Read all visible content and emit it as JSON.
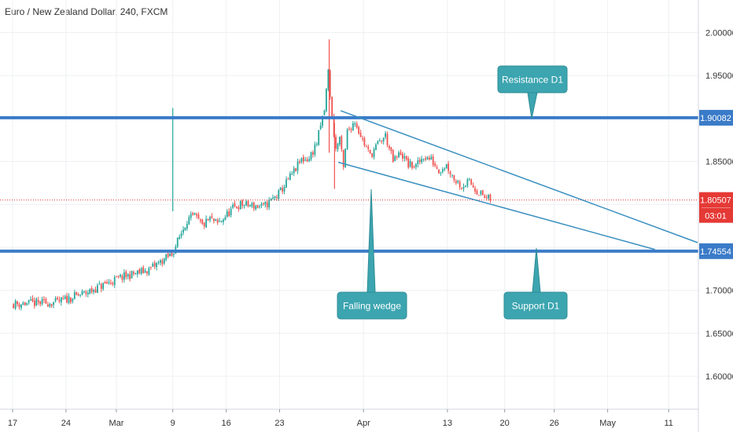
{
  "title": "Euro / New Zealand Dollar, 240, FXCM",
  "colors": {
    "up": "#26a69a",
    "down": "#ef5350",
    "level": "#3a7bc8",
    "wedge": "#3a8fc0",
    "callout_fill": "#3ca5b0",
    "callout_stroke": "#2e8d96",
    "current_price": "#e53935",
    "grid": "#eef0f3",
    "axis_text": "#333333"
  },
  "chart_data": {
    "type": "candlestick",
    "ylim": [
      1.55,
      2.04
    ],
    "y_ticks": [
      "1.60000",
      "1.65000",
      "1.70000",
      "1.75000",
      "1.80000",
      "1.85000",
      "1.90000",
      "1.95000",
      "2.00000"
    ],
    "x_ticks": [
      "17",
      "24",
      "Mar",
      "9",
      "16",
      "23",
      "Apr",
      "13",
      "20",
      "26",
      "May",
      "11"
    ],
    "price_path": [
      [
        0,
        1.684
      ],
      [
        6,
        1.686
      ],
      [
        10,
        1.698
      ],
      [
        14,
        1.714
      ],
      [
        18,
        1.724
      ],
      [
        21,
        1.742
      ],
      [
        23,
        1.782
      ],
      [
        24,
        1.786
      ],
      [
        25,
        1.775
      ],
      [
        26,
        1.783
      ],
      [
        27,
        1.777
      ],
      [
        29,
        1.795
      ],
      [
        30,
        1.8
      ],
      [
        33,
        1.797
      ],
      [
        35,
        1.812
      ],
      [
        37,
        1.838
      ],
      [
        38,
        1.852
      ],
      [
        39,
        1.853
      ],
      [
        40,
        1.872
      ],
      [
        41,
        1.91
      ],
      [
        41.5,
        1.955
      ],
      [
        42,
        1.9
      ],
      [
        42.5,
        1.864
      ],
      [
        43,
        1.878
      ],
      [
        43.5,
        1.841
      ],
      [
        44,
        1.885
      ],
      [
        45,
        1.897
      ],
      [
        46,
        1.875
      ],
      [
        47,
        1.857
      ],
      [
        48,
        1.87
      ],
      [
        49,
        1.88
      ],
      [
        50,
        1.85
      ],
      [
        51,
        1.86
      ],
      [
        52,
        1.846
      ],
      [
        53,
        1.844
      ],
      [
        54,
        1.856
      ],
      [
        55,
        1.852
      ],
      [
        56,
        1.84
      ],
      [
        57,
        1.846
      ],
      [
        58,
        1.83
      ],
      [
        59,
        1.822
      ],
      [
        60,
        1.826
      ],
      [
        61,
        1.816
      ],
      [
        62,
        1.808
      ],
      [
        62.5,
        1.806
      ]
    ],
    "spikes": [
      {
        "day": 21,
        "high": 1.912,
        "low": 1.792
      },
      {
        "day": 41.5,
        "high": 1.992,
        "low": 1.86
      },
      {
        "day": 42.2,
        "high": 1.895,
        "low": 1.818
      }
    ],
    "horizontal_levels": [
      {
        "value": 1.90082,
        "label": "1.90082"
      },
      {
        "value": 1.74554,
        "label": "1.74554"
      }
    ],
    "current_price": {
      "value": 1.80507,
      "label": "1.80507",
      "countdown": "03:01"
    },
    "wedge_lines": [
      {
        "from": [
          43,
          1.909
        ],
        "to": [
          89.8,
          1.7555
        ]
      },
      {
        "from": [
          42.7,
          1.849
        ],
        "to": [
          84.2,
          1.7475
        ]
      }
    ],
    "annotations": [
      {
        "text": "Resistance D1",
        "anchor": "Resistance D1"
      },
      {
        "text": "Falling wedge",
        "anchor": "Falling wedge"
      },
      {
        "text": "Support D1",
        "anchor": "Support D1"
      }
    ]
  }
}
